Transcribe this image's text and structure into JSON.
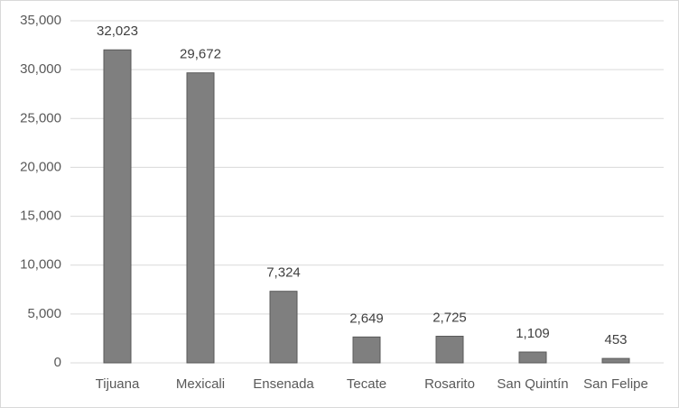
{
  "chart_data": {
    "type": "bar",
    "categories": [
      "Tijuana",
      "Mexicali",
      "Ensenada",
      "Tecate",
      "Rosarito",
      "San Quintín",
      "San Felipe"
    ],
    "values": [
      32023,
      29672,
      7324,
      2649,
      2725,
      1109,
      453
    ],
    "value_labels": [
      "32,023",
      "29,672",
      "7,324",
      "2,649",
      "2,725",
      "1,109",
      "453"
    ],
    "color": "#7f7f7f",
    "ylim": [
      0,
      35000
    ],
    "yticks": [
      0,
      {
        "value": 5000,
        "label": "5,000"
      },
      {
        "value": 10000,
        "label": "10,000"
      },
      {
        "value": 15000,
        "label": "15,000"
      },
      {
        "value": 20000,
        "label": "20,000"
      },
      {
        "value": 25000,
        "label": "25,000"
      },
      {
        "value": 30000,
        "label": "30,000"
      },
      {
        "value": 35000,
        "label": "35,000"
      }
    ],
    "grid": true
  }
}
